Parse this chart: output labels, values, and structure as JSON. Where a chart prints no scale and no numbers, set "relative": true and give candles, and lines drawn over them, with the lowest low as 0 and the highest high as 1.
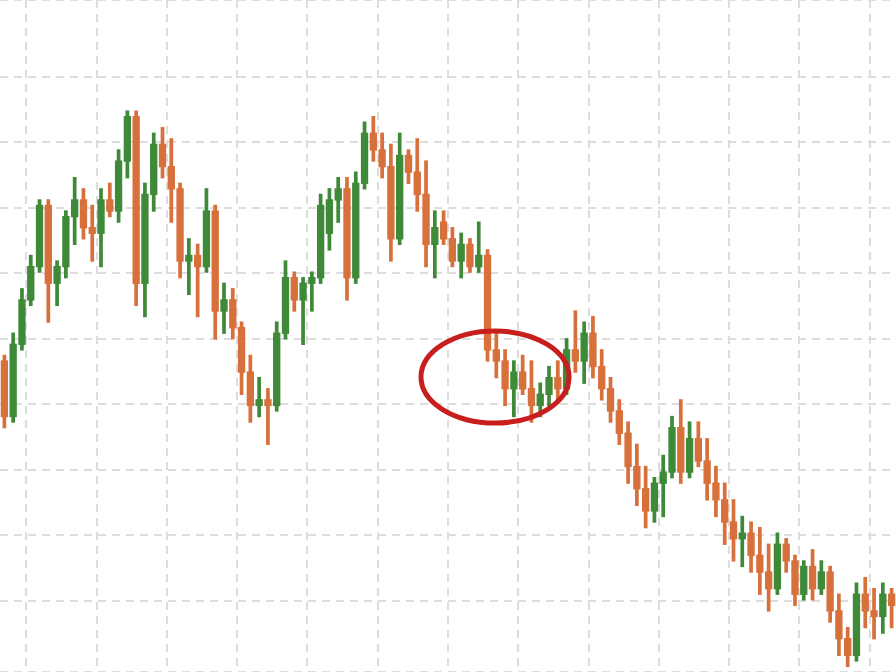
{
  "chart_data": {
    "type": "candlestick",
    "relative": true,
    "grid": true,
    "categories": [
      null,
      null,
      null,
      null,
      null,
      null,
      null,
      null,
      null,
      null,
      null,
      null,
      null,
      null,
      null,
      null,
      null,
      null,
      null,
      null,
      null,
      null,
      null,
      null,
      null,
      null,
      null,
      null,
      null,
      null,
      null,
      null,
      null,
      null,
      null,
      null,
      null,
      null,
      null,
      null,
      null,
      null,
      null,
      null,
      null,
      null,
      null,
      null,
      null,
      null,
      null,
      null,
      null,
      null,
      null,
      null,
      null,
      null,
      null,
      null,
      null,
      null,
      null,
      null,
      null,
      null,
      null,
      null,
      null,
      null,
      null,
      null,
      null,
      null,
      null,
      null,
      null,
      null,
      null,
      null,
      null,
      null,
      null,
      null,
      null,
      null,
      null,
      null,
      null,
      null,
      null,
      null,
      null,
      null,
      null,
      null,
      null,
      null,
      null,
      null,
      null,
      null
    ],
    "ohlc": [
      [
        0.55,
        0.56,
        0.43,
        0.45
      ],
      [
        0.45,
        0.6,
        0.44,
        0.58
      ],
      [
        0.58,
        0.68,
        0.57,
        0.66
      ],
      [
        0.66,
        0.74,
        0.65,
        0.72
      ],
      [
        0.72,
        0.84,
        0.71,
        0.83
      ],
      [
        0.83,
        0.84,
        0.62,
        0.69
      ],
      [
        0.69,
        0.73,
        0.65,
        0.72
      ],
      [
        0.72,
        0.82,
        0.7,
        0.81
      ],
      [
        0.81,
        0.88,
        0.76,
        0.84
      ],
      [
        0.84,
        0.86,
        0.77,
        0.79
      ],
      [
        0.79,
        0.83,
        0.73,
        0.78
      ],
      [
        0.78,
        0.86,
        0.72,
        0.84
      ],
      [
        0.84,
        0.87,
        0.81,
        0.82
      ],
      [
        0.82,
        0.93,
        0.8,
        0.91
      ],
      [
        0.91,
        1.0,
        0.88,
        0.99
      ],
      [
        0.99,
        1.0,
        0.65,
        0.69
      ],
      [
        0.69,
        0.87,
        0.63,
        0.85
      ],
      [
        0.85,
        0.96,
        0.82,
        0.94
      ],
      [
        0.94,
        0.97,
        0.88,
        0.9
      ],
      [
        0.9,
        0.95,
        0.8,
        0.86
      ],
      [
        0.86,
        0.87,
        0.7,
        0.73
      ],
      [
        0.73,
        0.77,
        0.67,
        0.74
      ],
      [
        0.74,
        0.76,
        0.63,
        0.72
      ],
      [
        0.72,
        0.86,
        0.71,
        0.82
      ],
      [
        0.82,
        0.83,
        0.59,
        0.64
      ],
      [
        0.64,
        0.69,
        0.6,
        0.66
      ],
      [
        0.66,
        0.68,
        0.59,
        0.61
      ],
      [
        0.61,
        0.62,
        0.49,
        0.53
      ],
      [
        0.53,
        0.56,
        0.44,
        0.47
      ],
      [
        0.47,
        0.52,
        0.45,
        0.48
      ],
      [
        0.48,
        0.5,
        0.4,
        0.47
      ],
      [
        0.47,
        0.62,
        0.46,
        0.6
      ],
      [
        0.6,
        0.73,
        0.59,
        0.7
      ],
      [
        0.7,
        0.71,
        0.64,
        0.66
      ],
      [
        0.66,
        0.7,
        0.58,
        0.69
      ],
      [
        0.69,
        0.71,
        0.64,
        0.7
      ],
      [
        0.7,
        0.85,
        0.69,
        0.83
      ],
      [
        0.78,
        0.86,
        0.75,
        0.84
      ],
      [
        0.84,
        0.88,
        0.8,
        0.86
      ],
      [
        0.86,
        0.88,
        0.66,
        0.7
      ],
      [
        0.7,
        0.89,
        0.69,
        0.87
      ],
      [
        0.87,
        0.98,
        0.86,
        0.96
      ],
      [
        0.96,
        0.99,
        0.91,
        0.93
      ],
      [
        0.93,
        0.96,
        0.88,
        0.9
      ],
      [
        0.9,
        0.94,
        0.73,
        0.77
      ],
      [
        0.77,
        0.96,
        0.76,
        0.92
      ],
      [
        0.92,
        0.93,
        0.87,
        0.89
      ],
      [
        0.89,
        0.95,
        0.82,
        0.85
      ],
      [
        0.85,
        0.91,
        0.72,
        0.76
      ],
      [
        0.76,
        0.82,
        0.7,
        0.79
      ],
      [
        0.8,
        0.82,
        0.76,
        0.77
      ],
      [
        0.77,
        0.79,
        0.72,
        0.73
      ],
      [
        0.73,
        0.78,
        0.7,
        0.76
      ],
      [
        0.76,
        0.77,
        0.71,
        0.72
      ],
      [
        0.72,
        0.8,
        0.71,
        0.74
      ],
      [
        0.74,
        0.75,
        0.55,
        0.57
      ],
      [
        0.57,
        0.6,
        0.52,
        0.55
      ],
      [
        0.55,
        0.57,
        0.47,
        0.5
      ],
      [
        0.5,
        0.55,
        0.45,
        0.53
      ],
      [
        0.53,
        0.56,
        0.49,
        0.5
      ],
      [
        0.5,
        0.55,
        0.44,
        0.47
      ],
      [
        0.47,
        0.51,
        0.45,
        0.49
      ],
      [
        0.49,
        0.54,
        0.47,
        0.52
      ],
      [
        0.52,
        0.55,
        0.48,
        0.5
      ],
      [
        0.5,
        0.59,
        0.49,
        0.57
      ],
      [
        0.57,
        0.64,
        0.53,
        0.55
      ],
      [
        0.55,
        0.62,
        0.51,
        0.6
      ],
      [
        0.6,
        0.63,
        0.52,
        0.54
      ],
      [
        0.54,
        0.57,
        0.48,
        0.5
      ],
      [
        0.5,
        0.52,
        0.44,
        0.46
      ],
      [
        0.46,
        0.48,
        0.4,
        0.42
      ],
      [
        0.42,
        0.44,
        0.33,
        0.36
      ],
      [
        0.36,
        0.4,
        0.29,
        0.32
      ],
      [
        0.32,
        0.36,
        0.25,
        0.28
      ],
      [
        0.28,
        0.34,
        0.26,
        0.33
      ],
      [
        0.33,
        0.38,
        0.27,
        0.35
      ],
      [
        0.35,
        0.45,
        0.34,
        0.43
      ],
      [
        0.43,
        0.48,
        0.33,
        0.35
      ],
      [
        0.35,
        0.44,
        0.34,
        0.41
      ],
      [
        0.41,
        0.44,
        0.36,
        0.37
      ],
      [
        0.37,
        0.41,
        0.3,
        0.33
      ],
      [
        0.33,
        0.36,
        0.27,
        0.3
      ],
      [
        0.3,
        0.33,
        0.22,
        0.26
      ],
      [
        0.26,
        0.3,
        0.19,
        0.23
      ],
      [
        0.23,
        0.27,
        0.18,
        0.24
      ],
      [
        0.24,
        0.26,
        0.17,
        0.2
      ],
      [
        0.2,
        0.25,
        0.13,
        0.17
      ],
      [
        0.17,
        0.22,
        0.1,
        0.14
      ],
      [
        0.14,
        0.24,
        0.13,
        0.22
      ],
      [
        0.22,
        0.23,
        0.17,
        0.19
      ],
      [
        0.19,
        0.2,
        0.11,
        0.13
      ],
      [
        0.13,
        0.19,
        0.12,
        0.18
      ],
      [
        0.18,
        0.21,
        0.12,
        0.14
      ],
      [
        0.14,
        0.19,
        0.13,
        0.17
      ],
      [
        0.17,
        0.18,
        0.08,
        0.1
      ],
      [
        0.1,
        0.13,
        0.02,
        0.05
      ],
      [
        0.05,
        0.07,
        0.0,
        0.02
      ],
      [
        0.02,
        0.15,
        0.01,
        0.13
      ],
      [
        0.13,
        0.16,
        0.07,
        0.1
      ],
      [
        0.1,
        0.14,
        0.05,
        0.09
      ],
      [
        0.09,
        0.15,
        0.06,
        0.13
      ],
      [
        0.13,
        0.14,
        0.07,
        0.11
      ]
    ],
    "colors": [
      "#d8703c",
      "#3f8a38",
      "#3f8a38",
      "#3f8a38",
      "#3f8a38",
      "#d8703c",
      "#3f8a38",
      "#3f8a38",
      "#3f8a38",
      "#d8703c",
      "#d8703c",
      "#3f8a38",
      "#d8703c",
      "#3f8a38",
      "#3f8a38",
      "#d8703c",
      "#3f8a38",
      "#3f8a38",
      "#d8703c",
      "#d8703c",
      "#d8703c",
      "#3f8a38",
      "#d8703c",
      "#3f8a38",
      "#d8703c",
      "#3f8a38",
      "#d8703c",
      "#d8703c",
      "#d8703c",
      "#3f8a38",
      "#d8703c",
      "#3f8a38",
      "#3f8a38",
      "#d8703c",
      "#3f8a38",
      "#3f8a38",
      "#3f8a38",
      "#3f8a38",
      "#3f8a38",
      "#d8703c",
      "#3f8a38",
      "#3f8a38",
      "#d8703c",
      "#d8703c",
      "#d8703c",
      "#3f8a38",
      "#d8703c",
      "#d8703c",
      "#d8703c",
      "#3f8a38",
      "#d8703c",
      "#d8703c",
      "#3f8a38",
      "#d8703c",
      "#3f8a38",
      "#d8703c",
      "#d8703c",
      "#d8703c",
      "#3f8a38",
      "#d8703c",
      "#d8703c",
      "#3f8a38",
      "#3f8a38",
      "#d8703c",
      "#3f8a38",
      "#d8703c",
      "#3f8a38",
      "#d8703c",
      "#d8703c",
      "#d8703c",
      "#d8703c",
      "#d8703c",
      "#d8703c",
      "#d8703c",
      "#3f8a38",
      "#3f8a38",
      "#3f8a38",
      "#d8703c",
      "#3f8a38",
      "#d8703c",
      "#d8703c",
      "#d8703c",
      "#d8703c",
      "#d8703c",
      "#3f8a38",
      "#d8703c",
      "#d8703c",
      "#d8703c",
      "#3f8a38",
      "#d8703c",
      "#d8703c",
      "#3f8a38",
      "#d8703c",
      "#3f8a38",
      "#d8703c",
      "#d8703c",
      "#d8703c",
      "#3f8a38",
      "#d8703c",
      "#d8703c",
      "#3f8a38",
      "#d8703c"
    ]
  }
}
